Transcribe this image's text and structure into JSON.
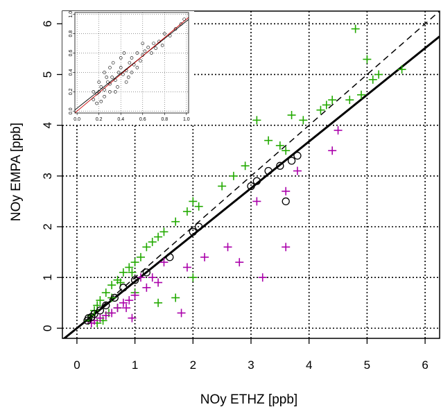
{
  "chart_data": [
    {
      "type": "scatter",
      "title": "",
      "xlabel": "NOy ETHZ [ppb]",
      "ylabel": "NOy EMPA [ppb]",
      "xlim": [
        -0.25,
        6.25
      ],
      "ylim": [
        -0.2,
        6.25
      ],
      "x_ticks": [
        "0",
        "1",
        "2",
        "3",
        "4",
        "5",
        "6"
      ],
      "y_ticks": [
        "0",
        "1",
        "2",
        "3",
        "4",
        "5",
        "6"
      ],
      "grid": "dotted",
      "colors": {
        "green": "#22aa00",
        "magenta": "#aa00aa",
        "black": "#000000"
      },
      "lines": [
        {
          "style": "dashed",
          "intercept": 0,
          "slope": 1
        },
        {
          "style": "solid",
          "intercept": 0,
          "slope": 0.92
        }
      ],
      "series": [
        {
          "color": "green",
          "marker": "plus",
          "x": [
            4.8,
            5.0,
            5.2,
            5.6,
            3.7,
            3.9,
            4.2,
            4.3,
            4.4,
            4.7,
            4.9,
            5.1,
            3.1,
            3.3,
            3.5,
            3.6,
            2.9,
            2.7,
            2.5,
            2.0,
            2.1,
            1.9,
            1.7,
            1.5,
            1.4,
            1.3,
            1.2,
            1.1,
            1.0,
            0.9,
            0.8,
            0.7,
            0.6,
            0.5,
            0.4,
            0.35,
            0.3,
            0.25,
            0.2,
            2.0,
            1.7,
            1.4,
            1.0,
            0.7,
            0.55,
            0.45,
            0.35,
            0.6,
            0.75,
            0.95
          ],
          "y": [
            5.9,
            5.3,
            5.0,
            5.1,
            4.2,
            4.1,
            4.3,
            4.4,
            4.5,
            4.5,
            4.6,
            4.9,
            4.1,
            3.7,
            3.6,
            3.5,
            3.2,
            3.0,
            2.8,
            2.5,
            2.4,
            2.3,
            2.1,
            1.9,
            1.8,
            1.7,
            1.6,
            1.4,
            1.3,
            1.2,
            1.1,
            0.95,
            0.85,
            0.7,
            0.55,
            0.45,
            0.35,
            0.25,
            0.15,
            1.0,
            0.6,
            0.5,
            0.7,
            0.4,
            0.3,
            0.15,
            0.1,
            0.6,
            0.9,
            1.1
          ]
        },
        {
          "color": "magenta",
          "marker": "plus",
          "x": [
            4.4,
            4.5,
            3.8,
            3.6,
            3.1,
            2.8,
            3.6,
            3.2,
            2.6,
            2.2,
            1.9,
            1.8,
            1.5,
            1.3,
            1.2,
            1.0,
            0.9,
            0.8,
            0.7,
            0.6,
            0.5,
            0.4,
            0.3,
            0.25,
            1.1,
            1.4,
            0.95,
            0.85
          ],
          "y": [
            3.5,
            3.9,
            3.1,
            2.7,
            2.5,
            1.3,
            1.6,
            1.0,
            1.6,
            1.4,
            1.2,
            0.3,
            1.3,
            1.0,
            0.8,
            0.65,
            0.55,
            0.5,
            0.4,
            0.3,
            0.25,
            0.2,
            0.15,
            0.1,
            1.0,
            0.9,
            0.2,
            0.4
          ]
        },
        {
          "color": "black",
          "marker": "circle",
          "x": [
            3.8,
            3.7,
            3.5,
            3.3,
            3.1,
            3.0,
            3.6,
            2.1,
            2.0,
            1.6,
            1.2,
            1.0,
            0.8,
            0.65,
            0.5,
            0.4,
            0.3,
            0.25,
            0.2,
            0.18
          ],
          "y": [
            3.4,
            3.3,
            3.2,
            3.1,
            2.9,
            2.8,
            2.5,
            2.0,
            1.9,
            1.4,
            1.1,
            0.95,
            0.8,
            0.6,
            0.45,
            0.35,
            0.28,
            0.22,
            0.2,
            0.15
          ]
        }
      ]
    },
    {
      "type": "scatter",
      "title": "",
      "xlabel": "",
      "ylabel": "",
      "xlim": [
        -0.02,
        1.02
      ],
      "ylim": [
        -0.02,
        1.02
      ],
      "x_ticks": [
        "0.0",
        "0.2",
        "0.4",
        "0.6",
        "0.8",
        "1.0"
      ],
      "y_ticks": [
        "0.0",
        "0.2",
        "0.4",
        "0.6",
        "0.8",
        "1.0"
      ],
      "grid": "dotted",
      "lines": [
        {
          "style": "solid",
          "color": "#000000",
          "intercept": 0.03,
          "slope": 0.9
        },
        {
          "style": "solid",
          "color": "#cc0000",
          "intercept": 0.0,
          "slope": 0.95
        }
      ],
      "series": [
        {
          "color": "black",
          "marker": "circle",
          "x": [
            0.15,
            0.18,
            0.2,
            0.22,
            0.25,
            0.28,
            0.3,
            0.32,
            0.35,
            0.38,
            0.4,
            0.42,
            0.45,
            0.48,
            0.5,
            0.52,
            0.55,
            0.58,
            0.6,
            0.62,
            0.65,
            0.68,
            0.7,
            0.72,
            0.75,
            0.78,
            0.8,
            0.85,
            0.9,
            0.95,
            0.98,
            0.2,
            0.25,
            0.3,
            0.35,
            0.4,
            0.45,
            0.5,
            0.22,
            0.27,
            0.33,
            0.37,
            0.43,
            0.55,
            0.6,
            0.47,
            0.3,
            0.25,
            0.15,
            0.18
          ],
          "y": [
            0.12,
            0.18,
            0.2,
            0.25,
            0.22,
            0.3,
            0.28,
            0.35,
            0.32,
            0.4,
            0.45,
            0.38,
            0.42,
            0.5,
            0.55,
            0.48,
            0.6,
            0.52,
            0.58,
            0.62,
            0.66,
            0.6,
            0.7,
            0.65,
            0.72,
            0.68,
            0.8,
            0.78,
            0.85,
            0.9,
            0.95,
            0.3,
            0.15,
            0.45,
            0.2,
            0.55,
            0.3,
            0.4,
            0.1,
            0.35,
            0.5,
            0.25,
            0.6,
            0.45,
            0.7,
            0.35,
            0.2,
            0.4,
            0.2,
            0.08
          ]
        }
      ]
    }
  ]
}
